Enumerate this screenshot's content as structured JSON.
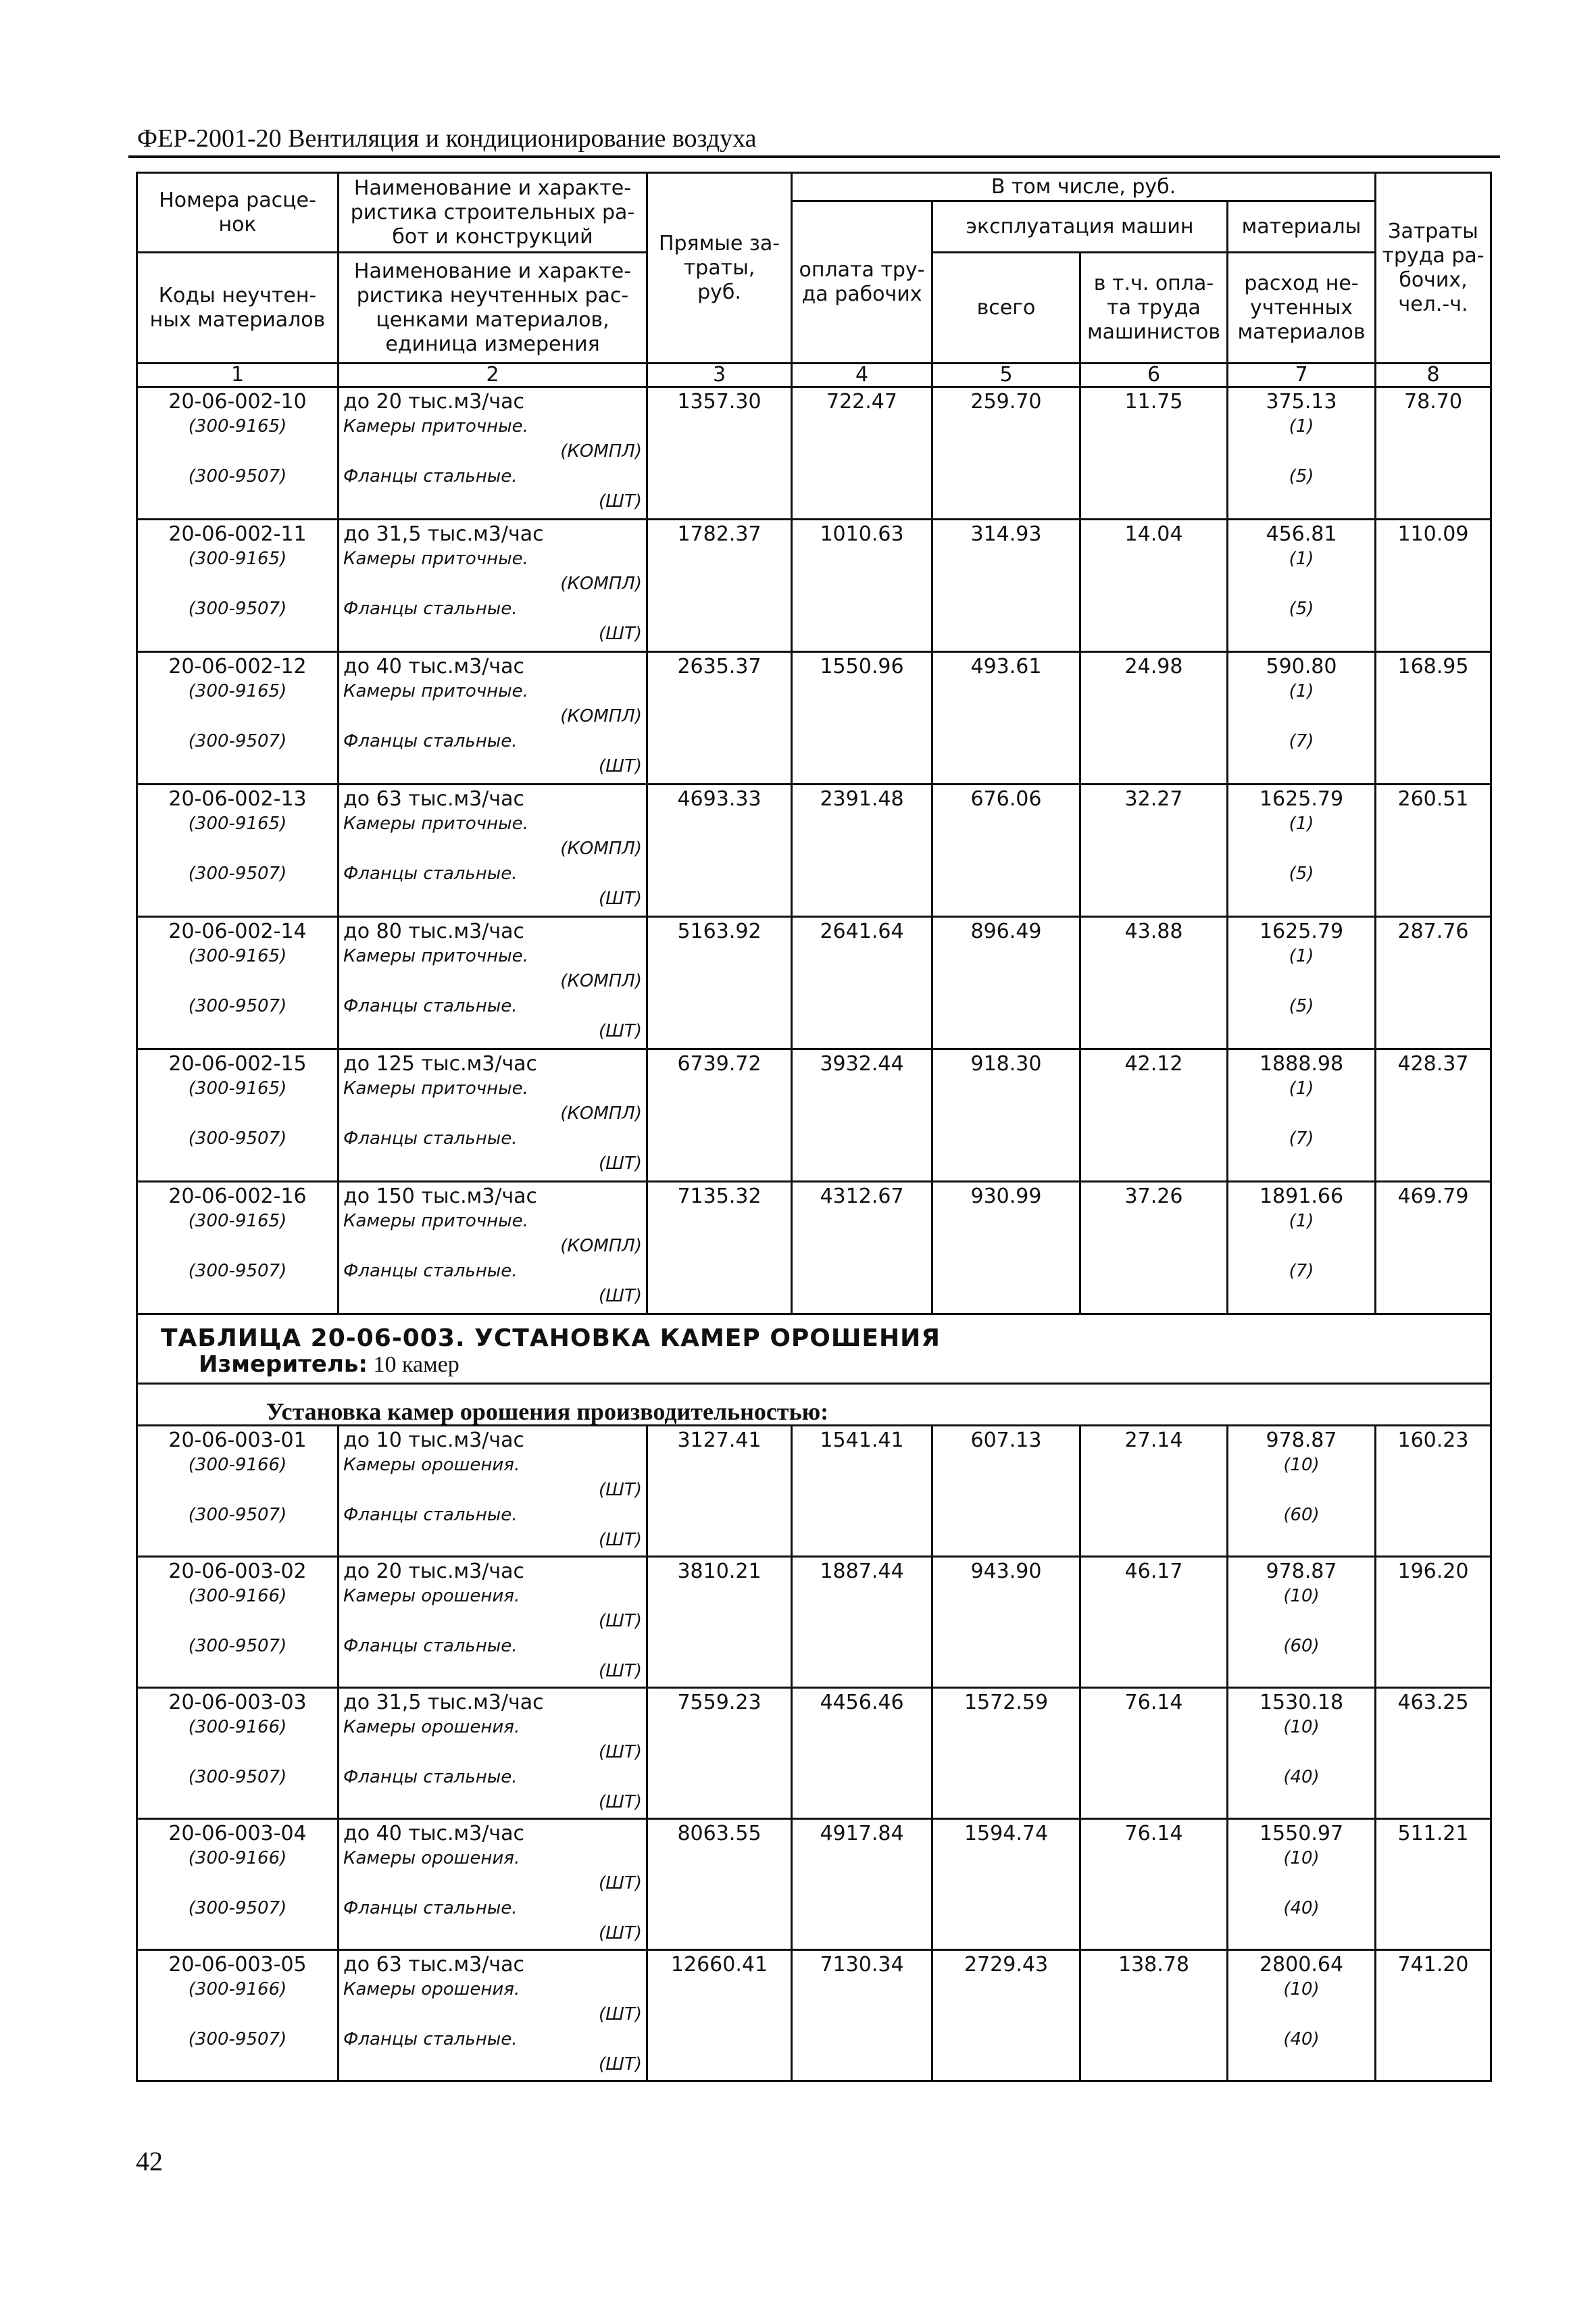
{
  "page_header": "ФЕР-2001-20  Вентиляция и кондиционирование воздуха",
  "page_number": "42",
  "table_header": {
    "col1_top": "Номера расце-\nнок",
    "col1_bottom": "Коды неучтен-\nных материалов",
    "col2_top": "Наименование и характе-\nристика строительных ра-\nбот и конструкций",
    "col2_bottom": "Наименование и характе-\nристика неучтенных рас-\nценками материалов,\nединица измерения",
    "col3": "Прямые за-\nтраты,\nруб.",
    "group": "В том числе, руб.",
    "col4": "оплата тру-\nда рабочих",
    "machines_group": "эксплуатация машин",
    "materials_group": "материалы",
    "col5": "всего",
    "col6": "в т.ч. опла-\nта труда\nмашинистов",
    "col7": "расход не-\nучтенных\nматериалов",
    "col8": "Затраты\nтруда ра-\nбочих,\nчел.-ч.",
    "numbers": [
      "1",
      "2",
      "3",
      "4",
      "5",
      "6",
      "7",
      "8"
    ]
  },
  "table1_rows": [
    {
      "code": "20-06-002-10",
      "name": "до 20 тыс.м3/час",
      "direct": "1357.30",
      "labor": "722.47",
      "machines": "259.70",
      "machinists": "11.75",
      "materials": "375.13",
      "hours": "78.70",
      "items": [
        {
          "code": "(300-9165)",
          "name": "Камеры приточные.",
          "unit": "(КОМПЛ)",
          "qty": "(1)"
        },
        {
          "code": "(300-9507)",
          "name": "Фланцы стальные.",
          "unit": "(ШТ)",
          "qty": "(5)"
        }
      ]
    },
    {
      "code": "20-06-002-11",
      "name": "до 31,5 тыс.м3/час",
      "direct": "1782.37",
      "labor": "1010.63",
      "machines": "314.93",
      "machinists": "14.04",
      "materials": "456.81",
      "hours": "110.09",
      "items": [
        {
          "code": "(300-9165)",
          "name": "Камеры приточные.",
          "unit": "(КОМПЛ)",
          "qty": "(1)"
        },
        {
          "code": "(300-9507)",
          "name": "Фланцы стальные.",
          "unit": "(ШТ)",
          "qty": "(5)"
        }
      ]
    },
    {
      "code": "20-06-002-12",
      "name": "до 40 тыс.м3/час",
      "direct": "2635.37",
      "labor": "1550.96",
      "machines": "493.61",
      "machinists": "24.98",
      "materials": "590.80",
      "hours": "168.95",
      "items": [
        {
          "code": "(300-9165)",
          "name": "Камеры приточные.",
          "unit": "(КОМПЛ)",
          "qty": "(1)"
        },
        {
          "code": "(300-9507)",
          "name": "Фланцы стальные.",
          "unit": "(ШТ)",
          "qty": "(7)"
        }
      ]
    },
    {
      "code": "20-06-002-13",
      "name": "до 63 тыс.м3/час",
      "direct": "4693.33",
      "labor": "2391.48",
      "machines": "676.06",
      "machinists": "32.27",
      "materials": "1625.79",
      "hours": "260.51",
      "items": [
        {
          "code": "(300-9165)",
          "name": "Камеры приточные.",
          "unit": "(КОМПЛ)",
          "qty": "(1)"
        },
        {
          "code": "(300-9507)",
          "name": "Фланцы стальные.",
          "unit": "(ШТ)",
          "qty": "(5)"
        }
      ]
    },
    {
      "code": "20-06-002-14",
      "name": "до 80 тыс.м3/час",
      "direct": "5163.92",
      "labor": "2641.64",
      "machines": "896.49",
      "machinists": "43.88",
      "materials": "1625.79",
      "hours": "287.76",
      "items": [
        {
          "code": "(300-9165)",
          "name": "Камеры приточные.",
          "unit": "(КОМПЛ)",
          "qty": "(1)"
        },
        {
          "code": "(300-9507)",
          "name": "Фланцы стальные.",
          "unit": "(ШТ)",
          "qty": "(5)"
        }
      ]
    },
    {
      "code": "20-06-002-15",
      "name": "до 125 тыс.м3/час",
      "direct": "6739.72",
      "labor": "3932.44",
      "machines": "918.30",
      "machinists": "42.12",
      "materials": "1888.98",
      "hours": "428.37",
      "items": [
        {
          "code": "(300-9165)",
          "name": "Камеры приточные.",
          "unit": "(КОМПЛ)",
          "qty": "(1)"
        },
        {
          "code": "(300-9507)",
          "name": "Фланцы стальные.",
          "unit": "(ШТ)",
          "qty": "(7)"
        }
      ]
    },
    {
      "code": "20-06-002-16",
      "name": "до 150 тыс.м3/час",
      "direct": "7135.32",
      "labor": "4312.67",
      "machines": "930.99",
      "machinists": "37.26",
      "materials": "1891.66",
      "hours": "469.79",
      "items": [
        {
          "code": "(300-9165)",
          "name": "Камеры приточные.",
          "unit": "(КОМПЛ)",
          "qty": "(1)"
        },
        {
          "code": "(300-9507)",
          "name": "Фланцы стальные.",
          "unit": "(ШТ)",
          "qty": "(7)"
        }
      ]
    }
  ],
  "section2": {
    "title": "ТАБЛИЦА  20-06-003. УСТАНОВКА КАМЕР ОРОШЕНИЯ",
    "measure_label": "Измеритель:",
    "measure_value": "10 камер",
    "subtitle": "Установка камер орошения производительностью:"
  },
  "table2_rows": [
    {
      "code": "20-06-003-01",
      "name": "до 10 тыс.м3/час",
      "direct": "3127.41",
      "labor": "1541.41",
      "machines": "607.13",
      "machinists": "27.14",
      "materials": "978.87",
      "hours": "160.23",
      "items": [
        {
          "code": "(300-9166)",
          "name": "Камеры орошения.",
          "unit": "(ШТ)",
          "qty": "(10)"
        },
        {
          "code": "(300-9507)",
          "name": "Фланцы стальные.",
          "unit": "(ШТ)",
          "qty": "(60)"
        }
      ]
    },
    {
      "code": "20-06-003-02",
      "name": "до 20 тыс.м3/час",
      "direct": "3810.21",
      "labor": "1887.44",
      "machines": "943.90",
      "machinists": "46.17",
      "materials": "978.87",
      "hours": "196.20",
      "items": [
        {
          "code": "(300-9166)",
          "name": "Камеры орошения.",
          "unit": "(ШТ)",
          "qty": "(10)"
        },
        {
          "code": "(300-9507)",
          "name": "Фланцы стальные.",
          "unit": "(ШТ)",
          "qty": "(60)"
        }
      ]
    },
    {
      "code": "20-06-003-03",
      "name": "до 31,5 тыс.м3/час",
      "direct": "7559.23",
      "labor": "4456.46",
      "machines": "1572.59",
      "machinists": "76.14",
      "materials": "1530.18",
      "hours": "463.25",
      "items": [
        {
          "code": "(300-9166)",
          "name": "Камеры орошения.",
          "unit": "(ШТ)",
          "qty": "(10)"
        },
        {
          "code": "(300-9507)",
          "name": "Фланцы стальные.",
          "unit": "(ШТ)",
          "qty": "(40)"
        }
      ]
    },
    {
      "code": "20-06-003-04",
      "name": "до 40 тыс.м3/час",
      "direct": "8063.55",
      "labor": "4917.84",
      "machines": "1594.74",
      "machinists": "76.14",
      "materials": "1550.97",
      "hours": "511.21",
      "items": [
        {
          "code": "(300-9166)",
          "name": "Камеры орошения.",
          "unit": "(ШТ)",
          "qty": "(10)"
        },
        {
          "code": "(300-9507)",
          "name": "Фланцы стальные.",
          "unit": "(ШТ)",
          "qty": "(40)"
        }
      ]
    },
    {
      "code": "20-06-003-05",
      "name": "до 63 тыс.м3/час",
      "direct": "12660.41",
      "labor": "7130.34",
      "machines": "2729.43",
      "machinists": "138.78",
      "materials": "2800.64",
      "hours": "741.20",
      "items": [
        {
          "code": "(300-9166)",
          "name": "Камеры орошения.",
          "unit": "(ШТ)",
          "qty": "(10)"
        },
        {
          "code": "(300-9507)",
          "name": "Фланцы стальные.",
          "unit": "(ШТ)",
          "qty": "(40)"
        }
      ]
    }
  ]
}
